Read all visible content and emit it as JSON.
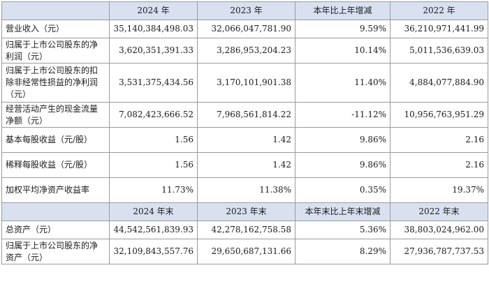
{
  "header1": [
    "",
    "2024 年",
    "2023 年",
    "本年比上年增减",
    "2022 年"
  ],
  "rows1": [
    {
      "label": "营业收入（元）",
      "v2024": "35,140,384,498.03",
      "v2023": "32,066,047,781.90",
      "change": "9.59%",
      "v2022": "36,210,971,441.99"
    },
    {
      "label": "归属于上市公司股东的净利润（元）",
      "v2024": "3,620,351,391.33",
      "v2023": "3,286,953,204.23",
      "change": "10.14%",
      "v2022": "5,011,536,639.03"
    },
    {
      "label": "归属于上市公司股东的扣除非经常性损益的净利润（元）",
      "v2024": "3,531,375,434.56",
      "v2023": "3,170,101,901.38",
      "change": "11.40%",
      "v2022": "4,884,077,884.90"
    },
    {
      "label": "经营活动产生的现金流量净额（元）",
      "v2024": "7,082,423,666.52",
      "v2023": "7,968,561,814.22",
      "change": "-11.12%",
      "v2022": "10,956,763,951.29"
    },
    {
      "label": "基本每股收益（元/股）",
      "v2024": "1.56",
      "v2023": "1.42",
      "change": "9.86%",
      "v2022": "2.16"
    },
    {
      "label": "稀释每股收益（元/股）",
      "v2024": "1.56",
      "v2023": "1.42",
      "change": "9.86%",
      "v2022": "2.16"
    },
    {
      "label": "加权平均净资产收益率",
      "v2024": "11.73%",
      "v2023": "11.38%",
      "change": "0.35%",
      "v2022": "19.37%"
    }
  ],
  "header2": [
    "",
    "2024 年末",
    "2023 年末",
    "本年末比上年末增减",
    "2022 年末"
  ],
  "rows2": [
    {
      "label": "总资产（元）",
      "v2024": "44,542,561,839.93",
      "v2023": "42,278,162,758.58",
      "change": "5.36%",
      "v2022": "38,803,024,962.00"
    },
    {
      "label": "归属于上市公司股东的净资产（元）",
      "v2024": "32,109,843,557.76",
      "v2023": "29,650,687,131.66",
      "change": "8.29%",
      "v2022": "27,936,787,737.53"
    }
  ]
}
